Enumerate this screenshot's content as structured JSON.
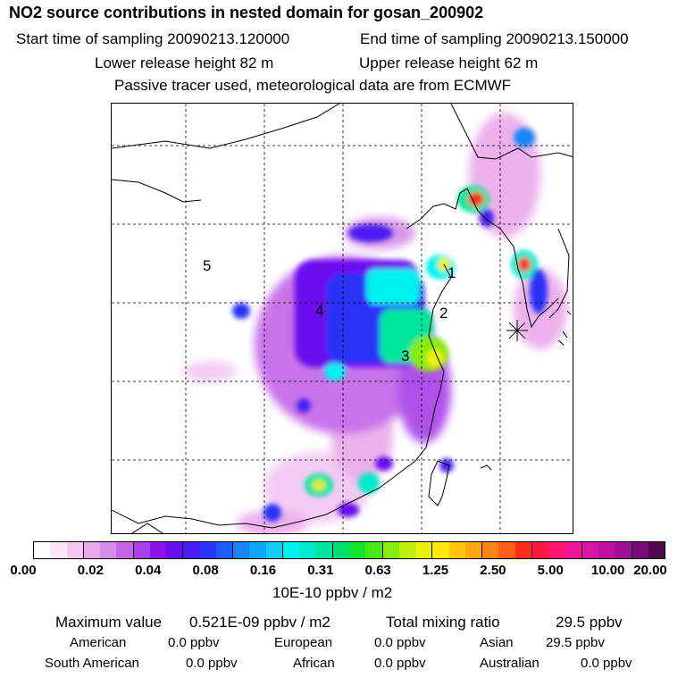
{
  "header": {
    "title": "NO2 source contributions in nested domain for gosan_200902",
    "start_label": "Start time of sampling 20090213.120000",
    "end_label": "End time of sampling 20090213.150000",
    "lower_label": "Lower release height   82 m",
    "upper_label": "Upper release height   62 m",
    "note": "Passive tracer used, meteorological data are from ECMWF"
  },
  "map": {
    "region_labels": [
      "1",
      "2",
      "3",
      "4",
      "5"
    ],
    "receptor_marker": "station-marker"
  },
  "colorbar": {
    "ticks": [
      "0.00",
      "0.02",
      "0.04",
      "0.08",
      "0.16",
      "0.31",
      "0.63",
      "1.25",
      "2.50",
      "5.00",
      "10.00",
      "20.00"
    ],
    "colors": [
      "#ffffff",
      "#fbe3fb",
      "#f3c6f3",
      "#eaa9ea",
      "#d48ee8",
      "#c265e8",
      "#a83fe8",
      "#8c12ea",
      "#6a0fef",
      "#4a1ef2",
      "#2b33f6",
      "#1c5cf7",
      "#1c84f9",
      "#11a7f9",
      "#15cbf7",
      "#00f1f1",
      "#00e9c8",
      "#00e59e",
      "#00df6f",
      "#10e32c",
      "#4be61a",
      "#87ec10",
      "#bdf00c",
      "#eaf00a",
      "#ffe80e",
      "#ffc611",
      "#ffa414",
      "#ff8316",
      "#ff5d18",
      "#ff2c1b",
      "#ff1840",
      "#fe1470",
      "#f01598",
      "#d814a6",
      "#bc12a0",
      "#9e0f94",
      "#7a0b7a",
      "#52084f"
    ],
    "unit": "10E-10 ppbv / m2"
  },
  "summary": {
    "max_label": "Maximum value",
    "max_value": "0.521E-09 ppbv / m2",
    "total_label": "Total mixing ratio",
    "total_value": "29.5 ppbv",
    "regions": [
      {
        "name": "American",
        "value": "0.0 ppbv"
      },
      {
        "name": "European",
        "value": "0.0 ppbv"
      },
      {
        "name": "Asian",
        "value": "29.5 ppbv"
      },
      {
        "name": "South American",
        "value": "0.0 ppbv"
      },
      {
        "name": "African",
        "value": "0.0 ppbv"
      },
      {
        "name": "Australian",
        "value": "0.0 ppbv"
      }
    ]
  }
}
